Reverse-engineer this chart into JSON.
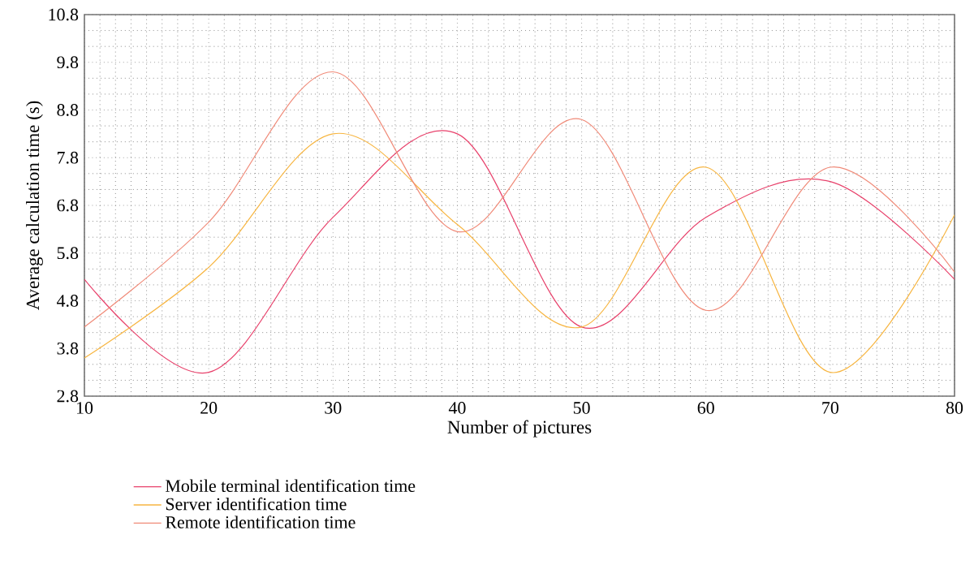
{
  "chart_data": {
    "type": "line",
    "xlabel": "Number of pictures",
    "ylabel": "Average calculation time (s)",
    "x": [
      10,
      20,
      30,
      40,
      50,
      60,
      70,
      80
    ],
    "series": [
      {
        "name": "Mobile terminal identification time",
        "color": "#e8416b",
        "values": [
          5.25,
          3.3,
          6.55,
          8.3,
          4.25,
          6.55,
          7.3,
          5.25
        ]
      },
      {
        "name": "Server identification time",
        "color": "#f7b540",
        "values": [
          3.6,
          5.5,
          8.3,
          6.4,
          4.25,
          7.6,
          3.3,
          6.6
        ]
      },
      {
        "name": "Remote identification time",
        "color": "#f08a78",
        "values": [
          4.25,
          6.45,
          9.6,
          6.25,
          8.6,
          4.6,
          7.6,
          5.4
        ]
      }
    ],
    "xlim": [
      10,
      80
    ],
    "xticks": [
      10,
      20,
      30,
      40,
      50,
      60,
      70,
      80
    ],
    "ylim": [
      2.8,
      10.8
    ],
    "yticks": [
      2.8,
      3.8,
      4.8,
      5.8,
      6.8,
      7.8,
      8.8,
      9.8,
      10.8
    ],
    "grid": true,
    "legend": "bottom",
    "marker": "none",
    "line_style": "solid"
  }
}
